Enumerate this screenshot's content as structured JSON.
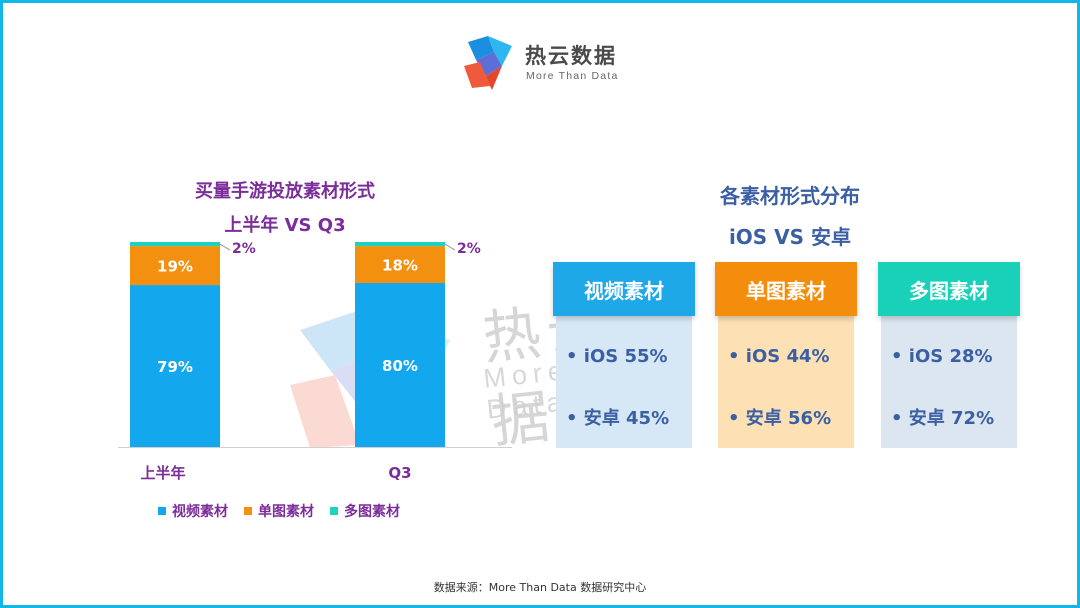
{
  "brand": {
    "name": "热云数据",
    "tagline": "More Than Data"
  },
  "left_chart": {
    "title_line1": "买量手游投放素材形式",
    "title_line2": "上半年 VS Q3"
  },
  "right_panel": {
    "title_line1": "各素材形式分布",
    "title_line2": "iOS VS 安卓",
    "cards": [
      {
        "label": "视频素材",
        "head_color": "#1ea8e8",
        "body_color": "#d6e7f5",
        "line1": "• iOS 55%",
        "line2": "• 安卓 45%"
      },
      {
        "label": "单图素材",
        "head_color": "#f48c0c",
        "body_color": "#fde0b4",
        "line1": "• iOS 44%",
        "line2": "• 安卓 56%"
      },
      {
        "label": "多图素材",
        "head_color": "#19d0b8",
        "body_color": "#dce6f0",
        "line1": "• iOS 28%",
        "line2": "• 安卓 72%"
      }
    ]
  },
  "source": "数据来源：More  Than  Data 数据研究中心",
  "colors": {
    "video": "#13a8ee",
    "single": "#f49010",
    "multi": "#1ed2c0",
    "title_purple": "#7b2d9a",
    "frame": "#13b6e8"
  },
  "chart_data": {
    "type": "bar",
    "stacked": true,
    "title": "买量手游投放素材形式 上半年 VS Q3",
    "categories": [
      "上半年",
      "Q3"
    ],
    "series": [
      {
        "name": "视频素材",
        "values": [
          79,
          80
        ],
        "labels": [
          "79%",
          "80%"
        ]
      },
      {
        "name": "单图素材",
        "values": [
          19,
          18
        ],
        "labels": [
          "19%",
          "18%"
        ]
      },
      {
        "name": "多图素材",
        "values": [
          2,
          2
        ],
        "labels": [
          "2%",
          "2%"
        ]
      }
    ],
    "ylim": [
      0,
      100
    ],
    "legend_position": "bottom",
    "grid": false
  }
}
